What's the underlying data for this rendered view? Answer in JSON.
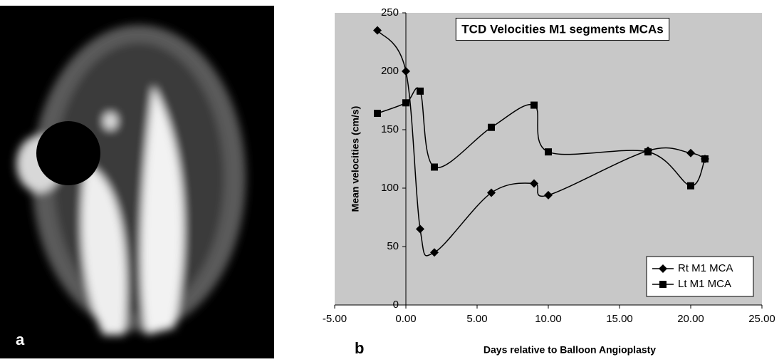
{
  "panel_labels": [
    "a",
    "b"
  ],
  "chart_data": {
    "type": "line",
    "title": "TCD Velocities M1 segments MCAs",
    "x_label": "Days relative to Balloon Angioplasty",
    "y_label": "Mean velocities (cm/s)",
    "x": [
      -2,
      0,
      1,
      2,
      6,
      9,
      10,
      17,
      20,
      21
    ],
    "series": [
      {
        "name": "Rt M1 MCA",
        "color": "#000000",
        "marker": "diamond",
        "values": [
          235,
          200,
          65,
          45,
          96,
          104,
          94,
          132,
          130,
          125
        ]
      },
      {
        "name": "Lt M1 MCA",
        "color": "#000000",
        "marker": "square",
        "values": [
          164,
          173,
          183,
          118,
          152,
          171,
          131,
          131,
          102,
          125
        ]
      }
    ],
    "xlim": [
      -5,
      25
    ],
    "xticks": [
      {
        "value": -5,
        "label": "-5.00"
      },
      {
        "value": 0,
        "label": "0.00"
      },
      {
        "value": 5,
        "label": "5.00"
      },
      {
        "value": 10,
        "label": "10.00"
      },
      {
        "value": 15,
        "label": "15.00"
      },
      {
        "value": 20,
        "label": "20.00"
      },
      {
        "value": 25,
        "label": "25.00"
      }
    ],
    "ylim": [
      0,
      250
    ],
    "yticks": [
      0,
      50,
      100,
      150,
      200,
      250
    ],
    "smooth": true,
    "legend": "lower right",
    "background": "#c8c8c8"
  }
}
